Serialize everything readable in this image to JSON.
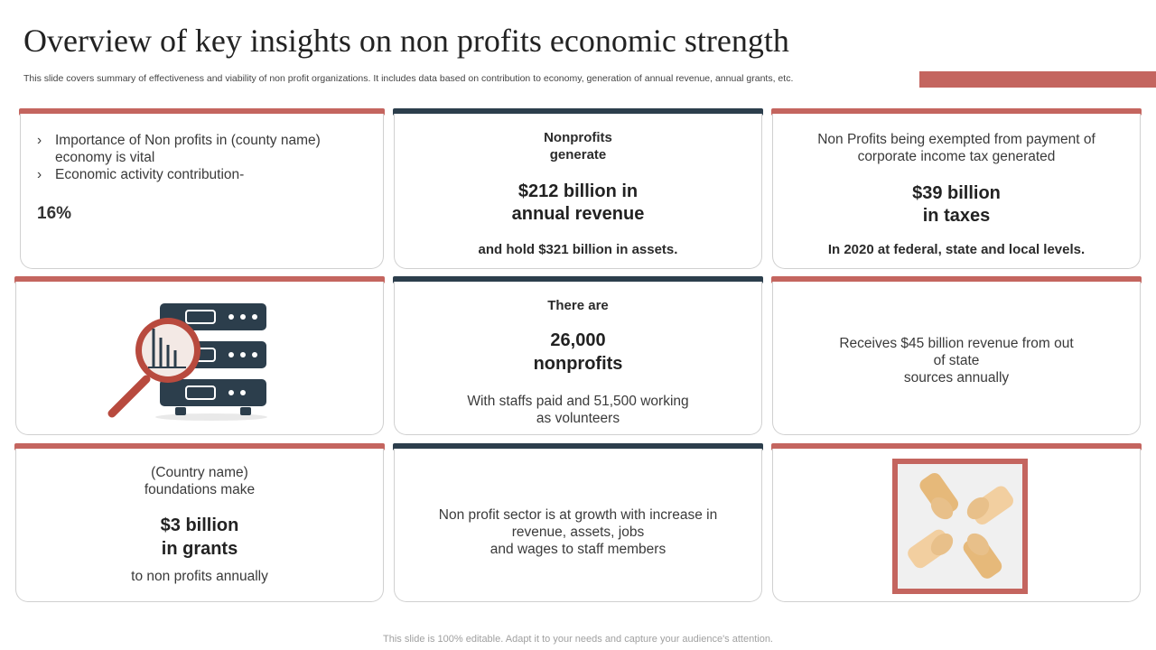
{
  "header": {
    "title": "Overview of key insights on non profits economic strength",
    "subtitle": "This slide covers summary of effectiveness and viability of non profit organizations. It includes data based on contribution to economy, generation of annual revenue, annual grants, etc."
  },
  "colors": {
    "red": "#c4655f",
    "navy": "#2c3e4c",
    "hand_light": "#f2cfa0",
    "hand_dark": "#e6b97a"
  },
  "cards": {
    "c1": {
      "bullet_glyph": "›",
      "bullet1_line1": "Importance of Non profits in (county name)",
      "bullet1_line2": "economy is vital",
      "bullet2": "Economic activity contribution-",
      "value": "16%"
    },
    "c2": {
      "line1": "Nonprofits",
      "line2": "generate",
      "big1": "$212 billion in",
      "big2": "annual revenue",
      "footer": "and hold $321 billion in assets."
    },
    "c3": {
      "line1": "Non Profits being exempted from payment of",
      "line2": "corporate income tax generated",
      "big1": "$39 billion",
      "big2": "in taxes",
      "footer": "In 2020 at federal, state and local levels."
    },
    "c4": {
      "icon": "server-magnifier-chart-icon"
    },
    "c5": {
      "line1": "There are",
      "big1": "26,000",
      "big2": "nonprofits",
      "foot1": "With staffs paid and 51,500 working",
      "foot2": "as volunteers"
    },
    "c6": {
      "line1": "Receives $45 billion revenue from out",
      "line2": "of state",
      "line3": "sources annually"
    },
    "c7": {
      "line1": "(Country name)",
      "line2": "foundations make",
      "big1": "$3 billion",
      "big2": "in grants",
      "footer": "to non profits annually"
    },
    "c8": {
      "line1": "Non profit sector is at growth with increase in",
      "line2": "revenue, assets, jobs",
      "line3": "and wages to staff members"
    },
    "c9": {
      "icon": "hands-teamwork-icon"
    }
  },
  "footer": "This slide is 100% editable. Adapt it to your needs and capture your audience's attention."
}
